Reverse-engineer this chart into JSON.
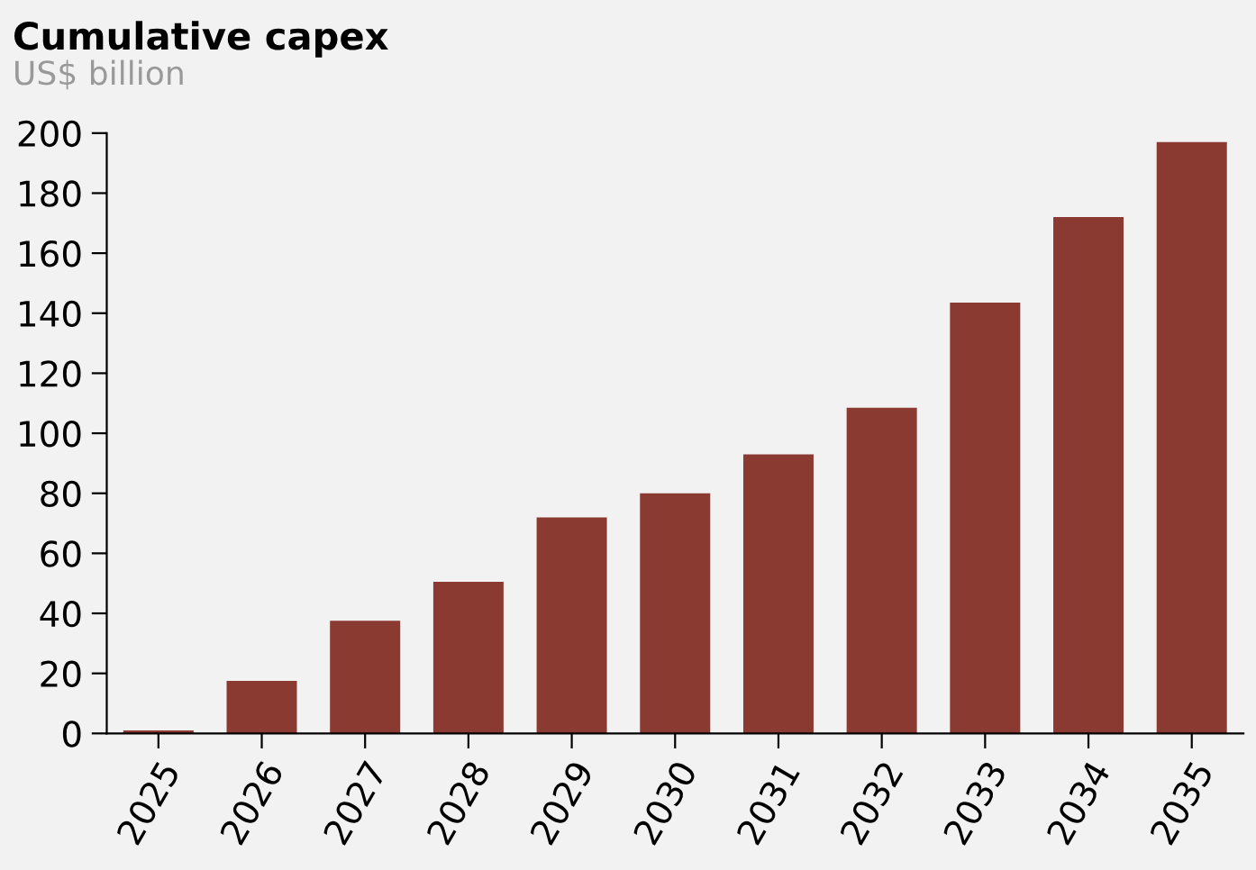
{
  "chart_data": {
    "type": "bar",
    "title": "Cumulative capex",
    "subtitle": "US$ billion",
    "categories": [
      "2025",
      "2026",
      "2027",
      "2028",
      "2029",
      "2030",
      "2031",
      "2032",
      "2033",
      "2034",
      "2035"
    ],
    "values": [
      1,
      17.5,
      37.5,
      50.5,
      72,
      80,
      93,
      108.5,
      143.5,
      172,
      197
    ],
    "color": "#8b3a32",
    "ylim": [
      0,
      200
    ],
    "yticks": [
      0,
      20,
      40,
      60,
      80,
      100,
      120,
      140,
      160,
      180,
      200
    ],
    "grid": false
  }
}
